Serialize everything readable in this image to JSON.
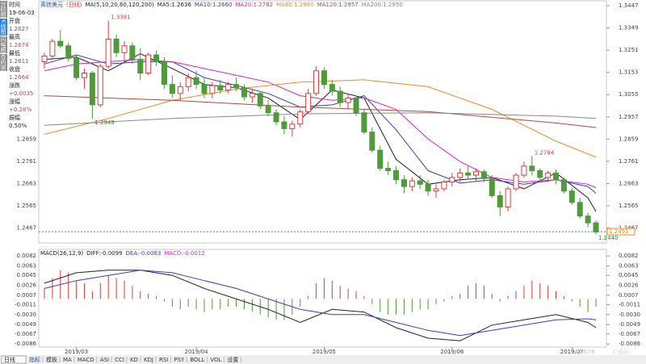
{
  "side_tabs": [
    "分时图",
    "K线图",
    "闪电图",
    "合约资料"
  ],
  "info": [
    {
      "label": "时间",
      "value": "19-06-03",
      "color": "#222222"
    },
    {
      "label": "开盘",
      "value": "1.2627",
      "color": "#2e8b2e"
    },
    {
      "label": "最高",
      "value": "1.2674",
      "color": "#e23b3b"
    },
    {
      "label": "最低",
      "value": "1.2611",
      "color": "#2e8b2e"
    },
    {
      "label": "收盘",
      "value": "1.2664",
      "color": "#e23b3b"
    },
    {
      "label": "涨跌",
      "value": "+0.0035",
      "color": "#e23b3b"
    },
    {
      "label": "涨幅",
      "value": "+0.28%",
      "color": "#e23b3b"
    },
    {
      "label": "振幅",
      "value": "0.50%",
      "color": "#222222"
    }
  ],
  "period": "日线",
  "toolbar": [
    "指标",
    "模板",
    "MA",
    "MACD",
    "ASI",
    "CCI",
    "KD",
    "KDJ",
    "RSI",
    "PSY",
    "BOLL",
    "VOL",
    "设置"
  ],
  "watermark": {
    "brand": "FX678",
    "site": "汇通网"
  },
  "chart_data": [
    {
      "type": "candlestick",
      "title": "英镑美元",
      "subtitle": "(日线)",
      "indicator": "MA(5,10,20,60,120,200)",
      "categories": [
        null,
        null,
        null,
        null,
        "2019/03",
        null,
        null,
        null,
        null,
        null,
        null,
        null,
        null,
        null,
        null,
        null,
        null,
        null,
        null,
        "2019/04",
        null,
        null,
        null,
        null,
        null,
        null,
        null,
        null,
        null,
        null,
        null,
        null,
        null,
        null,
        null,
        "2019/05",
        null,
        null,
        null,
        null,
        null,
        null,
        null,
        null,
        null,
        null,
        null,
        null,
        null,
        null,
        null,
        "2019/06",
        null,
        null,
        null,
        null,
        null,
        null,
        null,
        null,
        null,
        null,
        null,
        null,
        null,
        null,
        "2019/07",
        null,
        null,
        null
      ],
      "open": [
        1.32,
        1.3225,
        1.329,
        1.327,
        1.3215,
        1.313,
        1.315,
        1.301,
        1.318,
        1.33,
        1.324,
        1.327,
        1.321,
        1.315,
        1.323,
        1.32,
        1.31,
        1.306,
        1.309,
        1.313,
        1.31,
        1.306,
        1.3095,
        1.3075,
        1.31,
        1.3085,
        1.3045,
        1.306,
        1.3005,
        1.2975,
        1.2935,
        1.2905,
        1.2925,
        1.298,
        1.306,
        1.316,
        1.31,
        1.307,
        1.302,
        1.304,
        1.2975,
        1.289,
        1.281,
        1.273,
        1.272,
        1.268,
        1.265,
        1.2675,
        1.266,
        1.263,
        1.264,
        1.267,
        1.269,
        1.271,
        1.27,
        1.2715,
        1.2685,
        1.261,
        1.256,
        1.264,
        1.27,
        1.274,
        1.272,
        1.269,
        1.271,
        1.268,
        1.263,
        1.258,
        1.252,
        1.249
      ],
      "high": [
        1.324,
        1.33,
        1.334,
        1.3285,
        1.323,
        1.317,
        1.316,
        1.319,
        1.3381,
        1.332,
        1.329,
        1.3285,
        1.326,
        1.324,
        1.325,
        1.322,
        1.314,
        1.311,
        1.315,
        1.316,
        1.313,
        1.311,
        1.312,
        1.311,
        1.313,
        1.31,
        1.308,
        1.307,
        1.303,
        1.299,
        1.296,
        1.294,
        1.299,
        1.308,
        1.318,
        1.3175,
        1.312,
        1.309,
        1.306,
        1.305,
        1.299,
        1.291,
        1.283,
        1.276,
        1.274,
        1.27,
        1.269,
        1.27,
        1.268,
        1.266,
        1.268,
        1.271,
        1.273,
        1.274,
        1.273,
        1.2725,
        1.27,
        1.263,
        1.265,
        1.271,
        1.276,
        1.2784,
        1.273,
        1.272,
        1.2725,
        1.269,
        1.2645,
        1.26,
        1.2535,
        1.25
      ],
      "low": [
        1.317,
        1.321,
        1.326,
        1.32,
        1.312,
        1.308,
        1.2949,
        1.3,
        1.317,
        1.322,
        1.32,
        1.319,
        1.312,
        1.314,
        1.318,
        1.308,
        1.304,
        1.303,
        1.307,
        1.308,
        1.304,
        1.304,
        1.306,
        1.306,
        1.307,
        1.303,
        1.302,
        1.299,
        1.296,
        1.292,
        1.288,
        1.287,
        1.291,
        1.297,
        1.305,
        1.308,
        1.305,
        1.3,
        1.299,
        1.296,
        1.288,
        1.28,
        1.272,
        1.27,
        1.266,
        1.262,
        1.263,
        1.264,
        1.261,
        1.26,
        1.263,
        1.265,
        1.267,
        1.268,
        1.267,
        1.267,
        1.26,
        1.252,
        1.254,
        1.263,
        1.269,
        1.27,
        1.267,
        1.267,
        1.266,
        1.262,
        1.257,
        1.251,
        1.247,
        1.244
      ],
      "close": [
        1.3225,
        1.329,
        1.327,
        1.3215,
        1.313,
        1.315,
        1.301,
        1.318,
        1.33,
        1.324,
        1.327,
        1.321,
        1.315,
        1.323,
        1.32,
        1.31,
        1.306,
        1.309,
        1.313,
        1.31,
        1.306,
        1.3095,
        1.3075,
        1.31,
        1.3085,
        1.3045,
        1.306,
        1.3005,
        1.2975,
        1.2935,
        1.2905,
        1.2925,
        1.298,
        1.306,
        1.316,
        1.31,
        1.307,
        1.302,
        1.304,
        1.2975,
        1.289,
        1.281,
        1.273,
        1.272,
        1.268,
        1.265,
        1.2675,
        1.266,
        1.263,
        1.264,
        1.267,
        1.269,
        1.271,
        1.27,
        1.2715,
        1.2685,
        1.261,
        1.256,
        1.264,
        1.27,
        1.274,
        1.272,
        1.269,
        1.271,
        1.268,
        1.263,
        1.258,
        1.252,
        1.249,
        1.245
      ],
      "up_color": "#e23b3b",
      "down_color": "#4f9a3a",
      "ylim": [
        1.2405,
        1.3447
      ],
      "yticks": [
        1.2467,
        1.2565,
        1.2663,
        1.2761,
        1.2859,
        1.2957,
        1.3055,
        1.3153,
        1.3251,
        1.3349,
        1.3447
      ],
      "series": [
        {
          "name": "MA5:1.2636",
          "color": "#222222",
          "x": [
            0,
            4,
            8,
            12,
            16,
            20,
            24,
            28,
            32,
            36,
            40,
            44,
            48,
            52,
            56,
            60,
            64,
            68,
            69
          ],
          "values": [
            1.321,
            1.322,
            1.316,
            1.3235,
            1.317,
            1.31,
            1.3085,
            1.304,
            1.2945,
            1.3075,
            1.304,
            1.277,
            1.266,
            1.268,
            1.269,
            1.264,
            1.271,
            1.26,
            1.254
          ]
        },
        {
          "name": "MA10:1.2660",
          "color": "#3a3ad0",
          "x": [
            0,
            4,
            8,
            12,
            16,
            20,
            24,
            28,
            32,
            36,
            40,
            44,
            48,
            52,
            56,
            60,
            64,
            68,
            69
          ],
          "values": [
            1.319,
            1.323,
            1.319,
            1.32,
            1.32,
            1.313,
            1.3095,
            1.306,
            1.3,
            1.301,
            1.305,
            1.29,
            1.272,
            1.2665,
            1.268,
            1.266,
            1.268,
            1.265,
            1.262
          ]
        },
        {
          "name": "MA20:1.2782",
          "color": "#e020d0",
          "x": [
            0,
            4,
            8,
            12,
            16,
            20,
            24,
            28,
            32,
            36,
            40,
            44,
            48,
            52,
            56,
            60,
            64,
            68,
            69
          ],
          "values": [
            1.316,
            1.319,
            1.32,
            1.321,
            1.32,
            1.317,
            1.314,
            1.311,
            1.305,
            1.303,
            1.304,
            1.299,
            1.286,
            1.276,
            1.269,
            1.267,
            1.268,
            1.266,
            1.2645
          ]
        },
        {
          "name": "MA60:1.2960",
          "color": "#f08a24",
          "x": [
            0,
            8,
            16,
            24,
            32,
            40,
            48,
            56,
            64,
            69
          ],
          "values": [
            1.288,
            1.295,
            1.303,
            1.308,
            1.311,
            1.312,
            1.309,
            1.299,
            1.285,
            1.278
          ]
        },
        {
          "name": "MA120:1.2957",
          "color": "#b04a3a",
          "x": [
            0,
            16,
            32,
            48,
            64,
            69
          ],
          "values": [
            1.305,
            1.303,
            1.3,
            1.298,
            1.293,
            1.291
          ]
        },
        {
          "name": "MA200:1.2950",
          "color": "#888888",
          "x": [
            0,
            16,
            32,
            48,
            64,
            69
          ],
          "values": [
            1.292,
            1.295,
            1.297,
            1.2975,
            1.296,
            1.295
          ]
        }
      ],
      "annotations": [
        {
          "x": 8,
          "value": 1.3381,
          "label": "1.3381"
        },
        {
          "x": 6,
          "value": 1.2949,
          "label": "1.2949"
        },
        {
          "x": 61,
          "value": 1.2784,
          "label": "1.2784"
        },
        {
          "x": 69,
          "value": 1.244,
          "label": "1.2440"
        }
      ],
      "last_price": {
        "value": 1.2451,
        "label": "1.2451"
      }
    },
    {
      "type": "macd",
      "title": "MACD(26,12,9)",
      "values": [
        0.002,
        0.004,
        0.0055,
        0.005,
        0.0035,
        0.003,
        0.0015,
        0.003,
        0.0045,
        0.004,
        0.0035,
        0.0025,
        0.0015,
        0.001,
        0.0005,
        -0.0005,
        -0.0015,
        -0.002,
        -0.0015,
        -0.002,
        -0.0025,
        -0.002,
        -0.002,
        -0.0015,
        -0.0015,
        -0.002,
        -0.0025,
        -0.003,
        -0.0035,
        -0.004,
        -0.004,
        -0.003,
        -0.0015,
        0.0005,
        0.003,
        0.004,
        0.0035,
        0.0025,
        0.002,
        0.0015,
        0.0005,
        -0.001,
        -0.0025,
        -0.003,
        -0.003,
        -0.003,
        -0.0025,
        -0.002,
        -0.002,
        -0.001,
        -0.0005,
        0.0005,
        0.001,
        0.0025,
        0.003,
        0.0025,
        0.001,
        -0.0005,
        0.0005,
        0.0015,
        0.0025,
        0.0035,
        0.003,
        0.0025,
        0.0015,
        0.0005,
        -0.0005,
        -0.0015,
        -0.0025,
        -0.0015
      ],
      "up_color": "#e23b3b",
      "down_color": "#4f9a3a",
      "ylim": [
        -0.0092,
        0.009
      ],
      "yticks": [
        -0.0086,
        -0.0067,
        -0.0049,
        {
          "value": -0.003,
          "label": "-0.0030"
        },
        -0.0011,
        0.0007,
        0.0026,
        0.0045,
        0.0063,
        0.0082
      ],
      "series": [
        {
          "name": "DIFF:-0.0099",
          "color": "#222222",
          "x": [
            0,
            4,
            8,
            12,
            16,
            20,
            24,
            28,
            32,
            36,
            40,
            44,
            48,
            52,
            56,
            60,
            64,
            68,
            69
          ],
          "values": [
            0.003,
            0.005,
            0.0055,
            0.0055,
            0.0045,
            0.002,
            0.0,
            -0.002,
            -0.0045,
            -0.002,
            -0.0025,
            -0.0055,
            -0.0075,
            -0.008,
            -0.005,
            -0.004,
            -0.003,
            -0.0045,
            -0.0055
          ]
        },
        {
          "name": "DEA:-0.0083",
          "color": "#3a3ad0",
          "x": [
            0,
            4,
            8,
            12,
            16,
            20,
            24,
            28,
            32,
            36,
            40,
            44,
            48,
            52,
            56,
            60,
            64,
            68,
            69
          ],
          "values": [
            0.002,
            0.0035,
            0.0045,
            0.0055,
            0.005,
            0.0035,
            0.002,
            0.0,
            -0.002,
            -0.003,
            -0.003,
            -0.0045,
            -0.006,
            -0.007,
            -0.006,
            -0.005,
            -0.004,
            -0.0038,
            -0.004
          ]
        }
      ],
      "hist_name": "MACD:-0.0012",
      "hist_color": "#e020d0"
    }
  ]
}
